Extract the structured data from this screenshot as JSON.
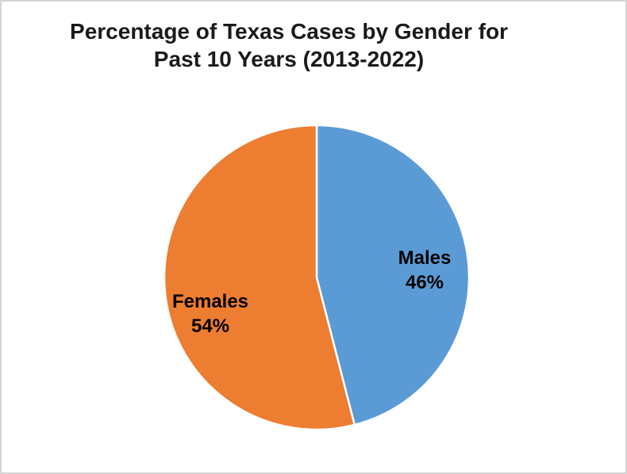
{
  "page": {
    "background_color": "#ffffff",
    "border_color": "#d4d4d4"
  },
  "chart_data": {
    "type": "pie",
    "title": "Percentage of Texas Cases by Gender for Past 10 Years (2013-2022)",
    "title_lines": [
      "Percentage of Texas Cases by Gender for",
      "Past 10 Years (2013-2022)"
    ],
    "categories": [
      "Males",
      "Females"
    ],
    "values": [
      46,
      54
    ],
    "unit": "%",
    "colors": [
      "#5b9bd5",
      "#ed7d31"
    ],
    "slice_border_color": "#ffffff",
    "start_angle_deg": 0,
    "direction": "clockwise",
    "legend_position": "none",
    "labels": [
      {
        "name": "Males",
        "value_text": "46%"
      },
      {
        "name": "Females",
        "value_text": "54%"
      }
    ]
  }
}
